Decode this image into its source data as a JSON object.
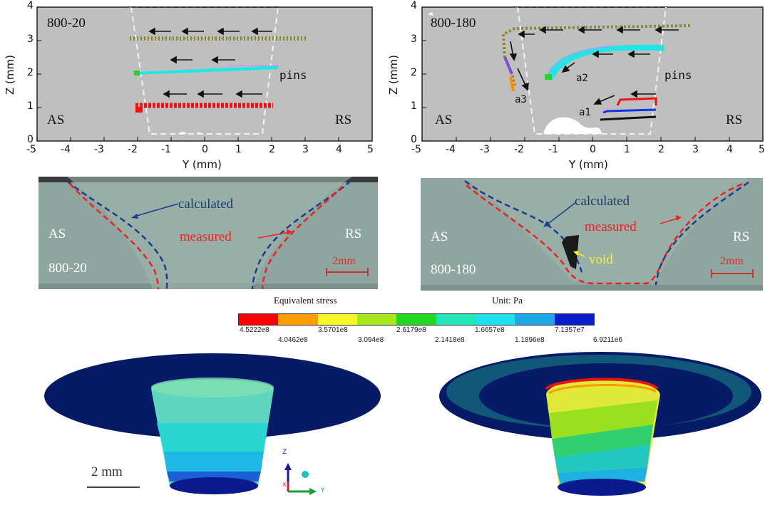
{
  "figure": {
    "top_left_plot": {
      "label": "800-20",
      "as_label": "AS",
      "rs_label": "RS",
      "pins_label": "pins",
      "xlabel": "Y (mm)",
      "ylabel": "Z (mm)",
      "xticks": [
        "-5",
        "-4",
        "-3",
        "-2",
        "-1",
        "0",
        "1",
        "2",
        "3",
        "4",
        "5"
      ],
      "yticks": [
        "0",
        "1",
        "2",
        "3",
        "4"
      ]
    },
    "top_right_plot": {
      "label": "800-180",
      "as_label": "AS",
      "rs_label": "RS",
      "pins_label": "pins",
      "a1_label": "a1",
      "a2_label": "a2",
      "a3_label": "a3",
      "xlabel": "Y (mm)",
      "ylabel": "Z (mm)",
      "xticks": [
        "-5",
        "-4",
        "-3",
        "-2",
        "-1",
        "0",
        "1",
        "2",
        "3",
        "4",
        "5"
      ],
      "yticks": [
        "0",
        "1",
        "2",
        "3",
        "4"
      ]
    },
    "micro_left": {
      "calculated": "calculated",
      "measured": "measured",
      "as_label": "AS",
      "rs_label": "RS",
      "sample": "800-20",
      "scale": "2mm"
    },
    "micro_right": {
      "calculated": "calculated",
      "measured": "measured",
      "void": "void",
      "as_label": "AS",
      "rs_label": "RS",
      "sample": "800-180",
      "scale": "2mm"
    },
    "colorbar": {
      "title": "Equivalent stress",
      "unit": "Unit: Pa",
      "colors": [
        "#ff0000",
        "#ff9c00",
        "#f5f52a",
        "#a6e81c",
        "#22d622",
        "#22e6b8",
        "#1ee1f0",
        "#1ea8e8",
        "#0a1ecc"
      ],
      "labels_top": [
        "4.5222e8",
        "3.5701e8",
        "2.6179e8",
        "1.6657e8",
        "7.1357e7"
      ],
      "labels_bottom": [
        "4.0462e8",
        "3.094e8",
        "2.1418e8",
        "1.1896e8",
        "6.9211e6"
      ]
    },
    "stress_models": {
      "scale": "2 mm",
      "axis_z": "Z",
      "axis_y": "Y",
      "axis_x": "X"
    }
  }
}
